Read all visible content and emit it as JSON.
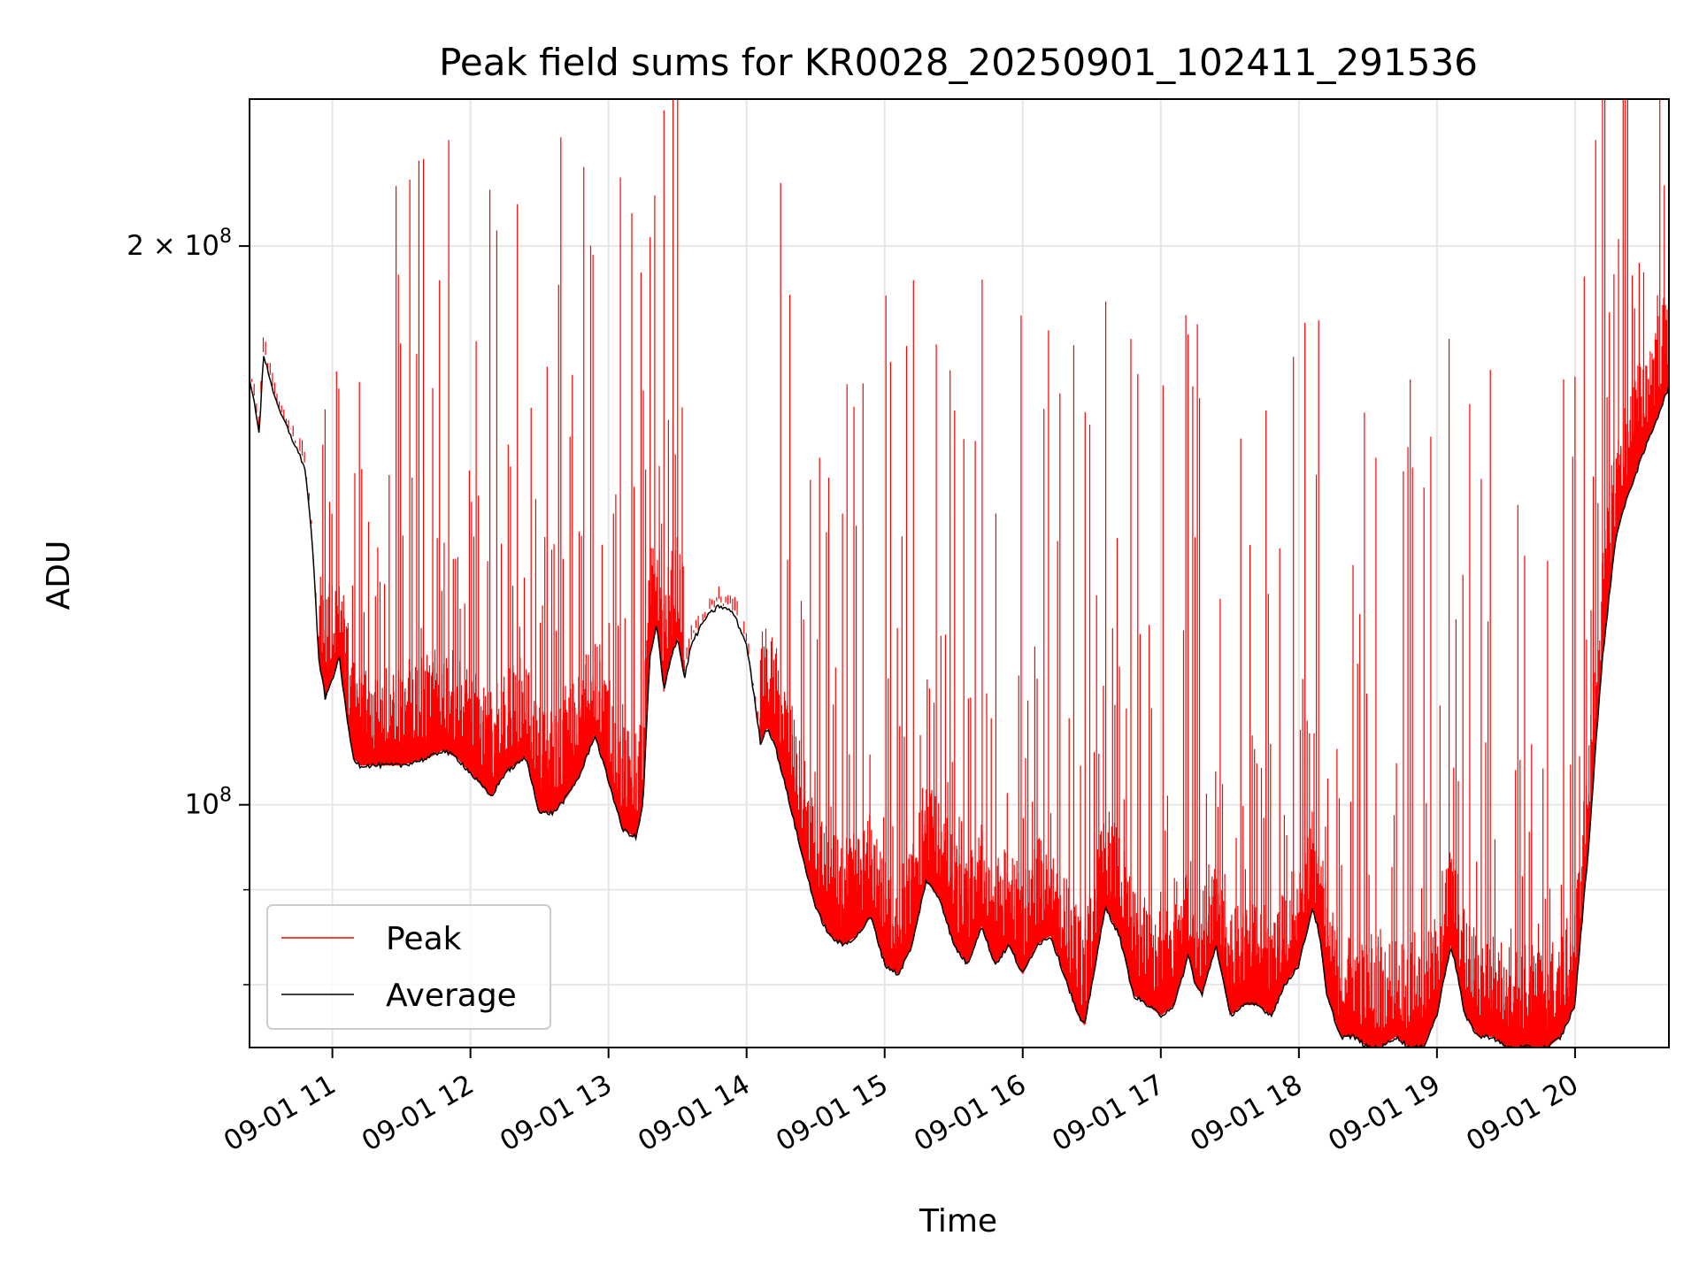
{
  "chart_data": {
    "type": "line",
    "title": "Peak field sums for KR0028_20250901_102411_291536",
    "xlabel": "Time",
    "ylabel": "ADU",
    "yscale": "log",
    "ylim": [
      74000000,
      240000000
    ],
    "xlim_hours": [
      10.4,
      20.68
    ],
    "grid": true,
    "legend_position": "lower-left",
    "x_ticks": [
      {
        "hour": 11,
        "label": "09-01 11"
      },
      {
        "hour": 12,
        "label": "09-01 12"
      },
      {
        "hour": 13,
        "label": "09-01 13"
      },
      {
        "hour": 14,
        "label": "09-01 14"
      },
      {
        "hour": 15,
        "label": "09-01 15"
      },
      {
        "hour": 16,
        "label": "09-01 16"
      },
      {
        "hour": 17,
        "label": "09-01 17"
      },
      {
        "hour": 18,
        "label": "09-01 18"
      },
      {
        "hour": 19,
        "label": "09-01 19"
      },
      {
        "hour": 20,
        "label": "09-01 20"
      }
    ],
    "y_major_ticks": [
      {
        "value": 100000000,
        "base": "10",
        "exp": "8",
        "coef": ""
      },
      {
        "value": 200000000,
        "base": "10",
        "exp": "8",
        "coef": "2 × "
      }
    ],
    "y_minor_ticks": [
      80000000,
      90000000
    ],
    "series": [
      {
        "name": "Peak",
        "color": "#ff0000",
        "spikes_on_average": true,
        "spike_count": 620
      },
      {
        "name": "Average",
        "color": "#000000",
        "x": [
          10.4,
          10.45,
          10.47,
          10.5,
          10.6,
          10.7,
          10.8,
          10.85,
          10.9,
          10.95,
          11.0,
          11.05,
          11.1,
          11.15,
          11.2,
          11.3,
          11.5,
          11.7,
          11.8,
          11.9,
          12.0,
          12.1,
          12.15,
          12.25,
          12.4,
          12.5,
          12.6,
          12.7,
          12.8,
          12.9,
          13.0,
          13.1,
          13.2,
          13.25,
          13.3,
          13.35,
          13.4,
          13.45,
          13.5,
          13.55,
          13.6,
          13.7,
          13.8,
          13.9,
          14.0,
          14.1,
          14.15,
          14.2,
          14.3,
          14.4,
          14.5,
          14.6,
          14.7,
          14.8,
          14.9,
          15.0,
          15.1,
          15.2,
          15.3,
          15.4,
          15.5,
          15.6,
          15.7,
          15.8,
          15.9,
          16.0,
          16.1,
          16.2,
          16.3,
          16.4,
          16.45,
          16.5,
          16.6,
          16.7,
          16.8,
          16.9,
          17.0,
          17.1,
          17.2,
          17.25,
          17.3,
          17.4,
          17.5,
          17.6,
          17.7,
          17.8,
          17.9,
          18.0,
          18.1,
          18.15,
          18.2,
          18.3,
          18.4,
          18.5,
          18.6,
          18.7,
          18.8,
          18.9,
          19.0,
          19.1,
          19.15,
          19.2,
          19.3,
          19.4,
          19.5,
          19.6,
          19.7,
          19.8,
          19.9,
          20.0,
          20.1,
          20.2,
          20.3,
          20.4,
          20.5,
          20.6,
          20.68
        ],
        "y": [
          170000000,
          162000000,
          158000000,
          175000000,
          164000000,
          158000000,
          152000000,
          140000000,
          120000000,
          114000000,
          117000000,
          120000000,
          112000000,
          106000000,
          105000000,
          105000000,
          105000000,
          106000000,
          107000000,
          106000000,
          104000000,
          102000000,
          101000000,
          104000000,
          106000000,
          99000000,
          99000000,
          101000000,
          104000000,
          109000000,
          103000000,
          97000000,
          96000000,
          100000000,
          120000000,
          125000000,
          115000000,
          120000000,
          123000000,
          117000000,
          122000000,
          126000000,
          128000000,
          127000000,
          122000000,
          108000000,
          110000000,
          108000000,
          101000000,
          94000000,
          88000000,
          85000000,
          84000000,
          85000000,
          87000000,
          82000000,
          81000000,
          84000000,
          91000000,
          89000000,
          84000000,
          82000000,
          86000000,
          82000000,
          84000000,
          81000000,
          84000000,
          85000000,
          81000000,
          77000000,
          76000000,
          80000000,
          88000000,
          85000000,
          79000000,
          78000000,
          77000000,
          78000000,
          83000000,
          80000000,
          79000000,
          84000000,
          77000000,
          78000000,
          78000000,
          77000000,
          80000000,
          82000000,
          88000000,
          85000000,
          79000000,
          75000000,
          75000000,
          74000000,
          74000000,
          75000000,
          74000000,
          74000000,
          77000000,
          84000000,
          81000000,
          77000000,
          75000000,
          75000000,
          74000000,
          74000000,
          74000000,
          74000000,
          75000000,
          78000000,
          95000000,
          120000000,
          140000000,
          148000000,
          155000000,
          162000000,
          168000000
        ]
      }
    ]
  }
}
